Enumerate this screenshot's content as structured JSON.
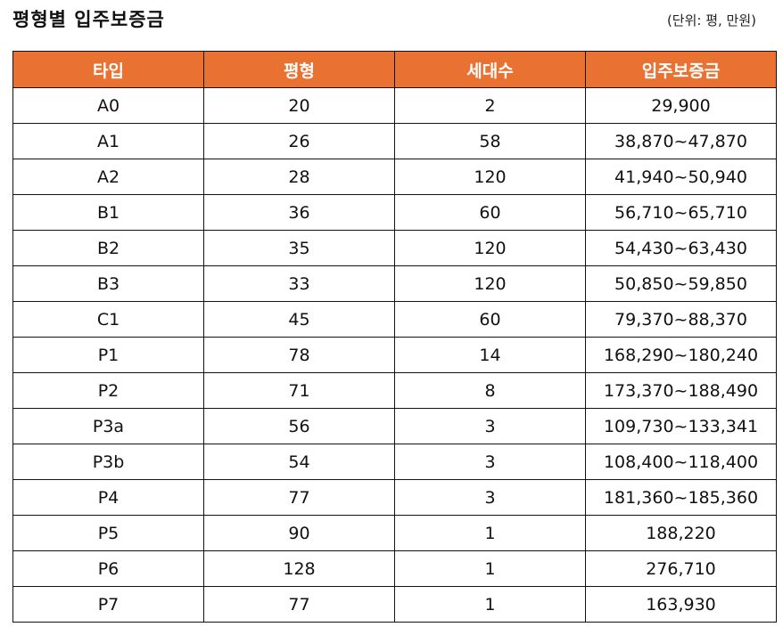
{
  "title": "평형별 입주보증금",
  "unit": "(단위: 평, 만원)",
  "colors": {
    "header_bg": "#e97132",
    "header_text": "#ffffff"
  },
  "table": {
    "headers": [
      "타입",
      "평형",
      "세대수",
      "입주보증금"
    ],
    "rows": [
      [
        "A0",
        "20",
        "2",
        "29,900"
      ],
      [
        "A1",
        "26",
        "58",
        "38,870~47,870"
      ],
      [
        "A2",
        "28",
        "120",
        "41,940~50,940"
      ],
      [
        "B1",
        "36",
        "60",
        "56,710~65,710"
      ],
      [
        "B2",
        "35",
        "120",
        "54,430~63,430"
      ],
      [
        "B3",
        "33",
        "120",
        "50,850~59,850"
      ],
      [
        "C1",
        "45",
        "60",
        "79,370~88,370"
      ],
      [
        "P1",
        "78",
        "14",
        "168,290~180,240"
      ],
      [
        "P2",
        "71",
        "8",
        "173,370~188,490"
      ],
      [
        "P3a",
        "56",
        "3",
        "109,730~133,341"
      ],
      [
        "P3b",
        "54",
        "3",
        "108,400~118,400"
      ],
      [
        "P4",
        "77",
        "3",
        "181,360~185,360"
      ],
      [
        "P5",
        "90",
        "1",
        "188,220"
      ],
      [
        "P6",
        "128",
        "1",
        "276,710"
      ],
      [
        "P7",
        "77",
        "1",
        "163,930"
      ]
    ]
  }
}
